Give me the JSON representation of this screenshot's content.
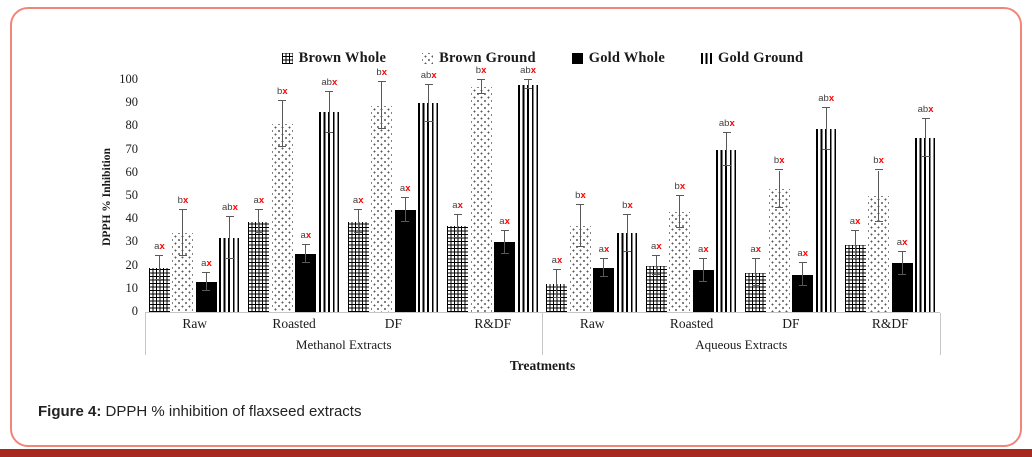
{
  "figure": {
    "caption_label": "Figure 4:",
    "caption_text": " DPPH % inhibition of flaxseed extracts"
  },
  "colors": {
    "frame_border": "#f2857a",
    "bottom_bar": "#a82a1e",
    "significance_x": "#ff0000",
    "error_bar": "#595959"
  },
  "chart_data": {
    "type": "bar",
    "title": "",
    "ylabel": "DPPH % Inhibition",
    "xlabel": "Treatments",
    "ylim": [
      0,
      100
    ],
    "yticks": [
      0,
      10,
      20,
      30,
      40,
      50,
      60,
      70,
      80,
      90,
      100
    ],
    "grid": false,
    "legend_position": "top",
    "series": [
      {
        "name": "Brown Whole",
        "pattern": "grid"
      },
      {
        "name": "Brown Ground",
        "pattern": "dots"
      },
      {
        "name": "Gold  Whole",
        "pattern": "solid"
      },
      {
        "name": "Gold  Ground",
        "pattern": "vlines"
      }
    ],
    "sections": [
      {
        "label": "Methanol Extracts",
        "groups": [
          {
            "category": "Raw",
            "bars": [
              {
                "v": 19,
                "e": 5,
                "sig": "ax"
              },
              {
                "v": 34,
                "e": 10,
                "sig": "bx"
              },
              {
                "v": 13,
                "e": 4,
                "sig": "ax"
              },
              {
                "v": 32,
                "e": 9,
                "sig": "abx"
              }
            ]
          },
          {
            "category": "Roasted",
            "bars": [
              {
                "v": 39,
                "e": 5,
                "sig": "ax"
              },
              {
                "v": 81,
                "e": 10,
                "sig": "bx"
              },
              {
                "v": 25,
                "e": 4,
                "sig": "ax"
              },
              {
                "v": 86,
                "e": 9,
                "sig": "abx"
              }
            ]
          },
          {
            "category": "DF",
            "bars": [
              {
                "v": 39,
                "e": 5,
                "sig": "ax"
              },
              {
                "v": 89,
                "e": 10,
                "sig": "bx"
              },
              {
                "v": 44,
                "e": 5,
                "sig": "ax"
              },
              {
                "v": 90,
                "e": 8,
                "sig": "abx"
              }
            ]
          },
          {
            "category": "R&DF",
            "bars": [
              {
                "v": 37,
                "e": 5,
                "sig": "ax"
              },
              {
                "v": 97,
                "e": 3,
                "sig": "bx"
              },
              {
                "v": 30,
                "e": 5,
                "sig": "ax"
              },
              {
                "v": 98,
                "e": 2,
                "sig": "abx"
              }
            ]
          }
        ]
      },
      {
        "label": "Aqueous Extracts",
        "groups": [
          {
            "category": "Raw",
            "bars": [
              {
                "v": 12,
                "e": 6,
                "sig": "ax"
              },
              {
                "v": 37,
                "e": 9,
                "sig": "bx"
              },
              {
                "v": 19,
                "e": 4,
                "sig": "ax"
              },
              {
                "v": 34,
                "e": 8,
                "sig": "bx"
              }
            ]
          },
          {
            "category": "Roasted",
            "bars": [
              {
                "v": 20,
                "e": 4,
                "sig": "ax"
              },
              {
                "v": 43,
                "e": 7,
                "sig": "bx"
              },
              {
                "v": 18,
                "e": 5,
                "sig": "ax"
              },
              {
                "v": 70,
                "e": 7,
                "sig": "abx"
              }
            ]
          },
          {
            "category": "DF",
            "bars": [
              {
                "v": 17,
                "e": 6,
                "sig": "ax"
              },
              {
                "v": 53,
                "e": 8,
                "sig": "bx"
              },
              {
                "v": 16,
                "e": 5,
                "sig": "ax"
              },
              {
                "v": 79,
                "e": 9,
                "sig": "abx"
              }
            ]
          },
          {
            "category": "R&DF",
            "bars": [
              {
                "v": 29,
                "e": 6,
                "sig": "ax"
              },
              {
                "v": 50,
                "e": 11,
                "sig": "bx"
              },
              {
                "v": 21,
                "e": 5,
                "sig": "ax"
              },
              {
                "v": 75,
                "e": 8,
                "sig": "abx"
              }
            ]
          }
        ]
      }
    ]
  }
}
